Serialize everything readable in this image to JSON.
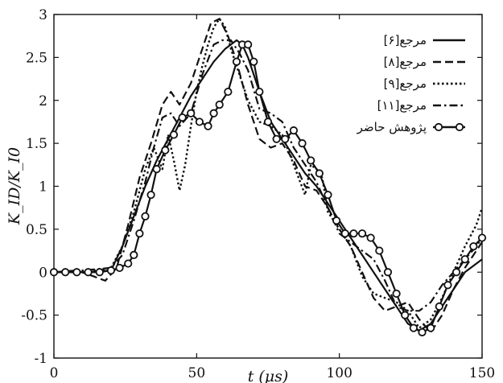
{
  "chart_data": {
    "type": "line",
    "xlabel": "t (μs)",
    "ylabel": "K_ID/K_I0",
    "xlim": [
      0,
      150
    ],
    "ylim": [
      -1,
      3
    ],
    "xticks": [
      0,
      50,
      100,
      150
    ],
    "yticks": [
      -1,
      -0.5,
      0,
      0.5,
      1,
      1.5,
      2,
      2.5,
      3
    ],
    "ytick_labels": [
      "-1",
      "-0.5",
      "0",
      "0.5",
      "1",
      "1.5",
      "2",
      "2.5",
      "3"
    ],
    "grid": false,
    "legend_position": "top-right",
    "series": [
      {
        "name": "مرجع[۶]",
        "style": "solid",
        "color": "#111111",
        "x": [
          0,
          10,
          20,
          24,
          28,
          32,
          36,
          40,
          44,
          48,
          52,
          56,
          60,
          64,
          66,
          68,
          72,
          76,
          80,
          84,
          88,
          92,
          96,
          100,
          104,
          108,
          112,
          116,
          120,
          124,
          128,
          132,
          136,
          140,
          144,
          148,
          150
        ],
        "y": [
          0.0,
          0.0,
          0.02,
          0.3,
          0.65,
          1.0,
          1.3,
          1.55,
          1.8,
          2.05,
          2.25,
          2.45,
          2.6,
          2.7,
          2.65,
          2.5,
          2.1,
          1.75,
          1.55,
          1.35,
          1.15,
          1.0,
          0.8,
          0.6,
          0.4,
          0.2,
          0.0,
          -0.2,
          -0.4,
          -0.6,
          -0.68,
          -0.6,
          -0.4,
          -0.2,
          0.0,
          0.1,
          0.15
        ]
      },
      {
        "name": "مرجع[۸]",
        "style": "dashed",
        "color": "#111111",
        "x": [
          0,
          8,
          14,
          18,
          22,
          26,
          30,
          34,
          38,
          41,
          44,
          48,
          52,
          55,
          58,
          61,
          64,
          68,
          72,
          76,
          80,
          84,
          88,
          92,
          96,
          100,
          104,
          108,
          112,
          116,
          120,
          124,
          128,
          132,
          136,
          140,
          144,
          148,
          150
        ],
        "y": [
          0.0,
          0.02,
          -0.05,
          -0.1,
          0.05,
          0.55,
          1.1,
          1.5,
          1.95,
          2.1,
          1.95,
          2.2,
          2.6,
          2.9,
          2.95,
          2.75,
          2.45,
          1.95,
          1.55,
          1.45,
          1.5,
          1.3,
          1.0,
          0.95,
          0.75,
          0.5,
          0.3,
          0.0,
          -0.3,
          -0.45,
          -0.4,
          -0.35,
          -0.55,
          -0.7,
          -0.5,
          -0.2,
          0.05,
          0.25,
          0.35
        ]
      },
      {
        "name": "مرجع[۹]",
        "style": "dotted",
        "color": "#111111",
        "x": [
          0,
          10,
          20,
          24,
          28,
          32,
          35,
          38,
          40,
          42,
          44,
          46,
          48,
          50,
          52,
          54,
          56,
          58,
          60,
          62,
          64,
          68,
          72,
          76,
          80,
          84,
          88,
          90,
          92,
          94,
          96,
          100,
          104,
          108,
          112,
          116,
          120,
          124,
          128,
          132,
          136,
          140,
          144,
          148,
          150
        ],
        "y": [
          0.0,
          0.0,
          0.05,
          0.3,
          0.7,
          1.2,
          1.45,
          1.2,
          1.6,
          1.3,
          0.95,
          1.25,
          1.7,
          2.1,
          2.4,
          2.65,
          2.85,
          2.95,
          2.85,
          2.6,
          2.4,
          2.0,
          1.75,
          1.7,
          1.6,
          1.25,
          0.9,
          1.25,
          1.2,
          1.1,
          0.7,
          0.5,
          0.3,
          -0.05,
          -0.25,
          -0.3,
          -0.35,
          -0.45,
          -0.65,
          -0.55,
          -0.3,
          0.0,
          0.3,
          0.55,
          0.75
        ]
      },
      {
        "name": "مرجع[۱۱]",
        "style": "dashdot",
        "color": "#111111",
        "x": [
          0,
          10,
          20,
          24,
          28,
          32,
          35,
          38,
          41,
          44,
          48,
          52,
          56,
          59,
          62,
          65,
          68,
          72,
          76,
          80,
          84,
          88,
          92,
          96,
          100,
          104,
          108,
          112,
          116,
          120,
          124,
          128,
          132,
          136,
          140,
          144,
          148,
          150
        ],
        "y": [
          0.0,
          0.02,
          0.05,
          0.2,
          0.6,
          1.05,
          1.45,
          1.8,
          1.85,
          1.7,
          1.85,
          2.3,
          2.65,
          2.7,
          2.7,
          2.55,
          2.35,
          1.9,
          1.85,
          1.75,
          1.45,
          1.25,
          1.05,
          0.75,
          0.45,
          0.35,
          0.25,
          0.15,
          -0.1,
          -0.4,
          -0.45,
          -0.45,
          -0.35,
          -0.15,
          0.0,
          0.15,
          0.3,
          0.4
        ]
      },
      {
        "name": "پژوهش حاضر",
        "style": "solid-marker",
        "color": "#111111",
        "x": [
          0,
          4,
          8,
          12,
          16,
          20,
          23,
          26,
          28,
          30,
          32,
          34,
          36,
          39,
          42,
          45,
          48,
          51,
          54,
          56,
          58,
          61,
          64,
          66,
          68,
          70,
          72,
          75,
          78,
          81,
          84,
          87,
          90,
          93,
          96,
          99,
          102,
          105,
          108,
          111,
          114,
          117,
          120,
          123,
          126,
          129,
          132,
          135,
          138,
          141,
          144,
          147,
          150
        ],
        "y": [
          0.0,
          0.0,
          0.0,
          0.0,
          0.0,
          0.02,
          0.05,
          0.1,
          0.2,
          0.45,
          0.65,
          0.9,
          1.2,
          1.42,
          1.6,
          1.8,
          1.85,
          1.75,
          1.7,
          1.85,
          1.95,
          2.1,
          2.45,
          2.65,
          2.65,
          2.45,
          2.1,
          1.75,
          1.55,
          1.55,
          1.65,
          1.5,
          1.3,
          1.15,
          0.9,
          0.6,
          0.45,
          0.45,
          0.45,
          0.4,
          0.25,
          0.0,
          -0.25,
          -0.5,
          -0.65,
          -0.7,
          -0.65,
          -0.4,
          -0.15,
          0.0,
          0.15,
          0.3,
          0.4
        ]
      }
    ]
  }
}
